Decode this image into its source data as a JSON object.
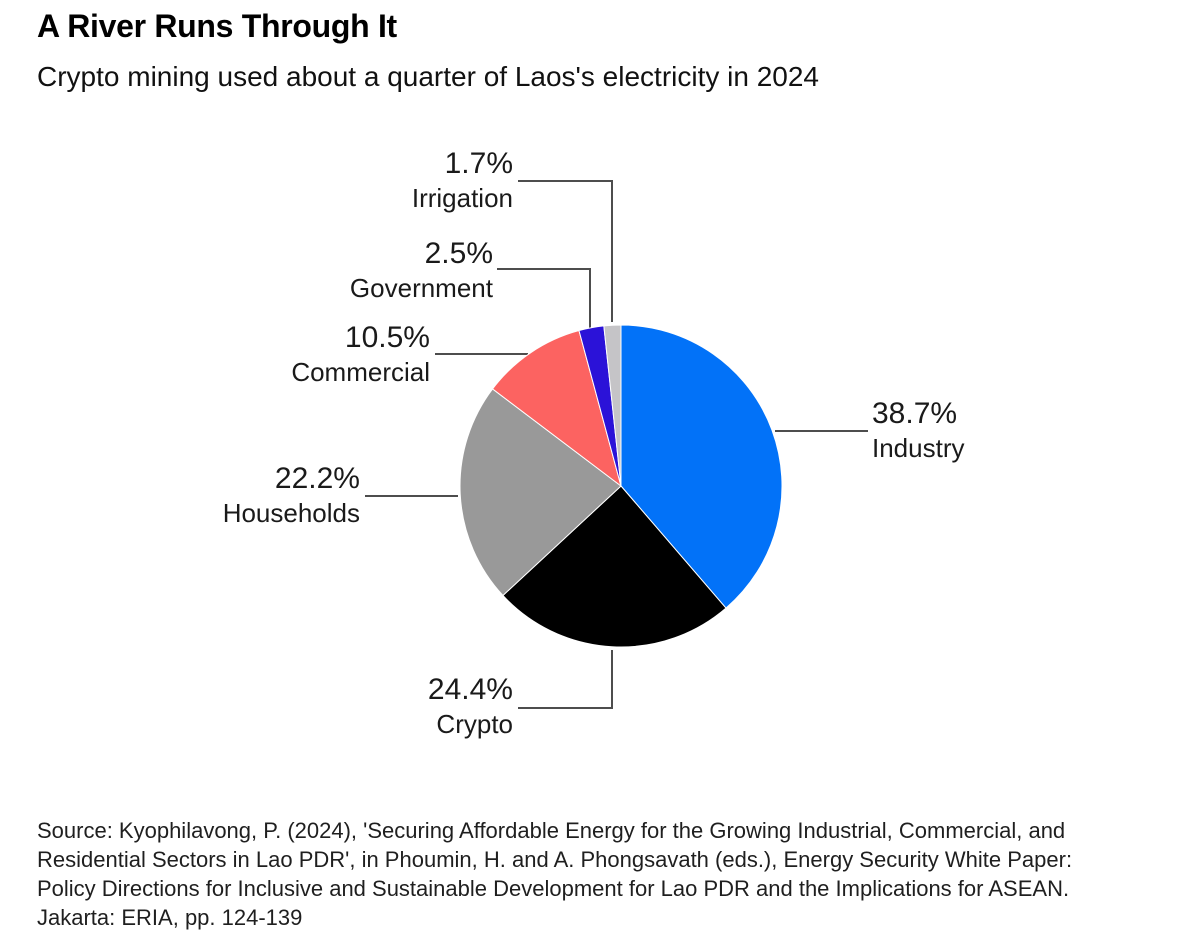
{
  "header": {
    "title": "A River Runs Through It",
    "subtitle": "Crypto mining used about a quarter of Laos's electricity in 2024"
  },
  "chart_data": {
    "type": "pie",
    "title": "A River Runs Through It",
    "subtitle": "Crypto mining used about a quarter of Laos's electricity in 2024",
    "unit": "percent",
    "start_angle_deg": 0,
    "direction": "clockwise",
    "legend_position": "callout-labels",
    "slices": [
      {
        "label": "Industry",
        "value": 38.7,
        "display": "38.7%",
        "color": "#0272F8"
      },
      {
        "label": "Crypto",
        "value": 24.4,
        "display": "24.4%",
        "color": "#000000"
      },
      {
        "label": "Households",
        "value": 22.2,
        "display": "22.2%",
        "color": "#999999"
      },
      {
        "label": "Commercial",
        "value": 10.5,
        "display": "10.5%",
        "color": "#FC6361"
      },
      {
        "label": "Government",
        "value": 2.5,
        "display": "2.5%",
        "color": "#2B12D8"
      },
      {
        "label": "Irrigation",
        "value": 1.7,
        "display": "1.7%",
        "color": "#C5C4C7"
      }
    ],
    "leader_line_color": "#4d4d4d"
  },
  "source": {
    "text": "Source: Kyophilavong, P. (2024), 'Securing Affordable Energy for the Growing Industrial, Commercial, and\nResidential Sectors in Lao PDR', in Phoumin, H. and A. Phongsavath (eds.), Energy Security White Paper:\nPolicy Directions for Inclusive and Sustainable Development for Lao PDR and the Implications for ASEAN.\nJakarta: ERIA, pp. 124-139"
  }
}
